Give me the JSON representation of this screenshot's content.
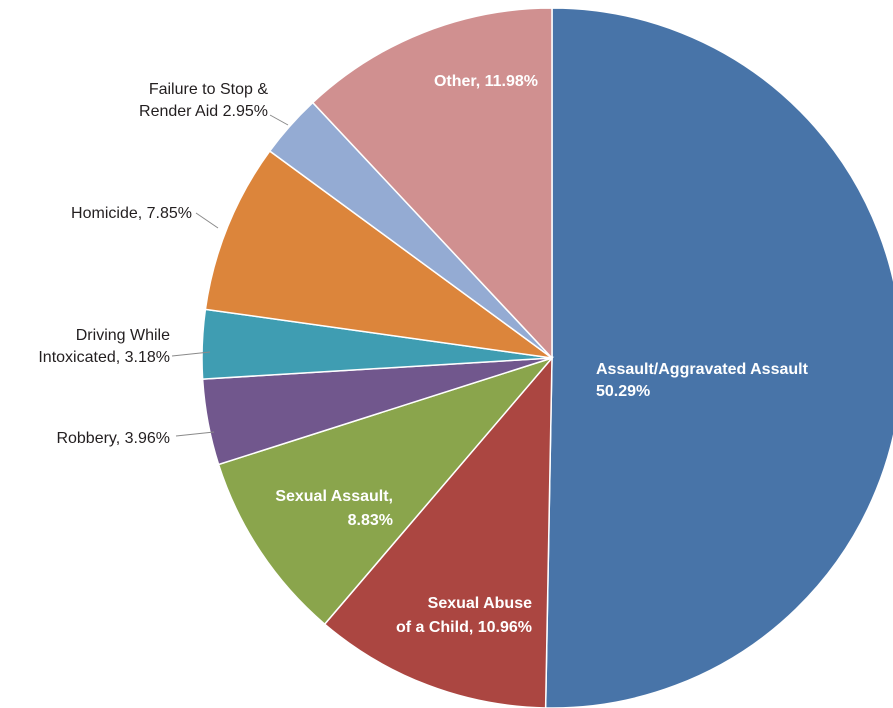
{
  "chart_data": {
    "type": "pie",
    "title": "",
    "start_angle_deg": 0,
    "direction": "clockwise",
    "slices": [
      {
        "name": "Assault/Aggravated Assault",
        "value": 50.29,
        "color": "#4874a8",
        "label_lines": [
          "Assault/Aggravated Assault",
          "50.29%"
        ],
        "label_position": "inside"
      },
      {
        "name": "Sexual Abuse of a Child",
        "value": 10.96,
        "color": "#ab4641",
        "label_lines": [
          "Sexual Abuse",
          "of a Child, 10.96%"
        ],
        "label_position": "inside"
      },
      {
        "name": "Sexual Assault",
        "value": 8.83,
        "color": "#8aa54c",
        "label_lines": [
          "Sexual Assault,",
          "8.83%"
        ],
        "label_position": "inside"
      },
      {
        "name": "Robbery",
        "value": 3.96,
        "color": "#71578d",
        "label_lines": [
          "Robbery, 3.96%"
        ],
        "label_position": "outside"
      },
      {
        "name": "Driving While Intoxicated",
        "value": 3.18,
        "color": "#3f9db2",
        "label_lines": [
          "Driving While",
          "Intoxicated, 3.18%"
        ],
        "label_position": "outside"
      },
      {
        "name": "Homicide",
        "value": 7.85,
        "color": "#dc853b",
        "label_lines": [
          "Homicide, 7.85%"
        ],
        "label_position": "outside"
      },
      {
        "name": "Failure to Stop & Render Aid",
        "value": 2.95,
        "color": "#94abd3",
        "label_lines": [
          "Failure to Stop &",
          "Render Aid 2.95%"
        ],
        "label_position": "outside"
      },
      {
        "name": "Other",
        "value": 11.98,
        "color": "#d09090",
        "label_lines": [
          "Other, 11.98%"
        ],
        "label_position": "inside"
      }
    ]
  }
}
